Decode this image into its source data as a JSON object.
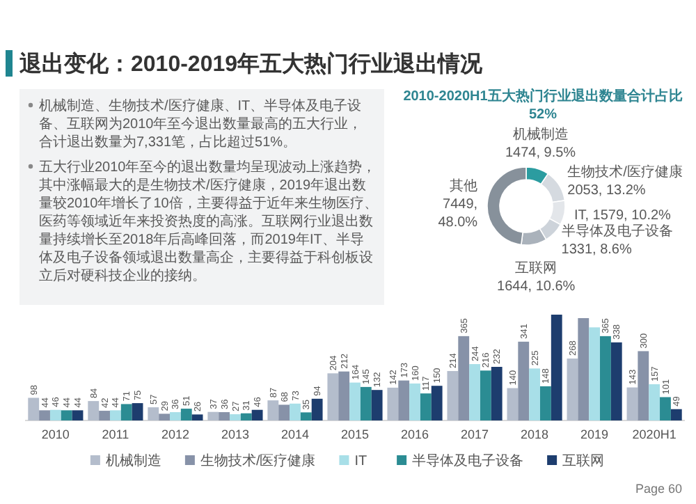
{
  "chart_data": [
    {
      "type": "other",
      "title": "退出变化：2010-2019年五大热门行业退出情况",
      "annotations": [
        "机械制造、生物技术/医疗健康、IT、半导体及电子设备、互联网为2010年至今退出数量最高的五大行业，合计退出数量为7,331笔，占比超过51%。",
        "五大行业2010年至今的退出数量均呈现波动上涨趋势，其中涨幅最大的是生物技术/医疗健康，2019年退出数量较2010年增长了10倍，主要得益于近年来生物医疗、医药等领域近年来投资热度的高涨。互联网行业退出数量持续增长至2018年后高峰回落，而2019年IT、半导体及电子设备领域退出数量高企，主要得益于科创板设立后对硬科技企业的接纳。"
      ]
    },
    {
      "type": "donut",
      "title": "2010-2020H1五大热门行业退出数量合计占比52%",
      "categories": [
        "机械制造",
        "生物技术/医疗健康",
        "IT",
        "半导体及电子设备",
        "互联网",
        "其他"
      ],
      "values": [
        1474,
        2053,
        1579,
        1331,
        1644,
        7449
      ],
      "value_labels": [
        "1474, 9.5%",
        "2053, 13.2%",
        "1579, 10.2%",
        "1331, 8.6%",
        "1644, 10.6%",
        "7449, 48.0%"
      ],
      "colors": [
        "#2b9ca0",
        "#d5dae0",
        "#e3e6ea",
        "#cdd3da",
        "#aab2bb",
        "#87919b"
      ]
    },
    {
      "type": "bar",
      "categories": [
        "2010",
        "2011",
        "2012",
        "2013",
        "2014",
        "2015",
        "2016",
        "2017",
        "2018",
        "2019",
        "2020H1"
      ],
      "series": [
        {
          "name": "机械制造",
          "color": "#b4bdcc",
          "values": [
            98,
            84,
            57,
            37,
            87,
            204,
            142,
            214,
            140,
            268,
            143
          ],
          "value_labels": [
            "98",
            "84",
            "57",
            "37",
            "87",
            "204",
            "142",
            "214",
            "140",
            "268",
            "143"
          ]
        },
        {
          "name": "生物技术/医疗健康",
          "color": "#8792a8",
          "values": [
            44,
            42,
            29,
            36,
            68,
            212,
            173,
            365,
            341,
            443,
            300
          ],
          "value_labels": [
            "44",
            "42",
            "29",
            "36",
            "68",
            "212",
            "173",
            "365",
            "341",
            null,
            "300"
          ]
        },
        {
          "name": "IT",
          "color": "#a8dfe8",
          "values": [
            46,
            44,
            36,
            27,
            73,
            164,
            160,
            244,
            225,
            403,
            157
          ],
          "value_labels": [
            "46",
            "44",
            "36",
            "27",
            "73",
            "164",
            "160",
            "244",
            "225",
            null,
            "157"
          ]
        },
        {
          "name": "半导体及电子设备",
          "color": "#2b8c93",
          "values": [
            44,
            71,
            51,
            31,
            35,
            145,
            117,
            216,
            148,
            365,
            101
          ],
          "value_labels": [
            "44",
            "71",
            "51",
            "31",
            "35",
            "145",
            "117",
            "216",
            "148",
            "365",
            "101"
          ]
        },
        {
          "name": "互联网",
          "color": "#1d3d6e",
          "values": [
            44,
            75,
            26,
            46,
            94,
            132,
            150,
            232,
            458,
            338,
            49
          ],
          "value_labels": [
            "44",
            "75",
            "26",
            "46",
            "94",
            "132",
            "150",
            "232",
            null,
            "338",
            "49"
          ]
        }
      ],
      "legend": "bottom",
      "tick_labels": "x",
      "annotations": [
        "Page 60"
      ]
    }
  ]
}
